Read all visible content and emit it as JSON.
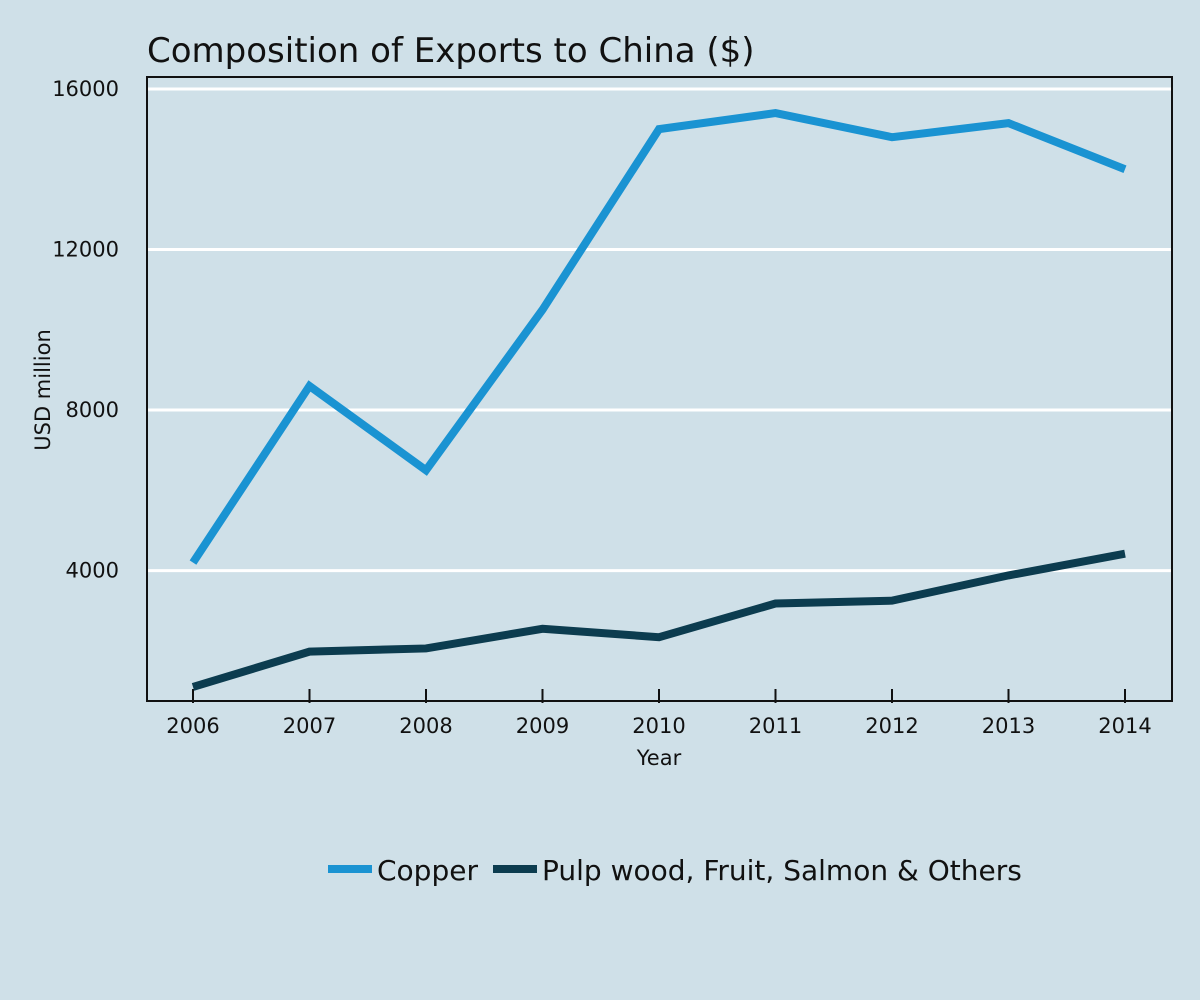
{
  "chart_data": {
    "type": "line",
    "title": "Composition of Exports to China ($)",
    "xlabel": "Year",
    "ylabel": "USD million",
    "x": [
      2006,
      2007,
      2008,
      2009,
      2010,
      2011,
      2012,
      2013,
      2014
    ],
    "x_tick_labels": [
      "2006",
      "2007",
      "2008",
      "2009",
      "2010",
      "2011",
      "2012",
      "2013",
      "2014"
    ],
    "y_ticks": [
      4000,
      8000,
      12000,
      16000
    ],
    "y_tick_labels": [
      "4000",
      "8000",
      "12000",
      "16000"
    ],
    "ylim": [
      850,
      16100
    ],
    "grid": "horizontal",
    "legend_position": "bottom-center",
    "series": [
      {
        "name": "Copper",
        "color": "#1a93d2",
        "values": [
          4200,
          8600,
          6500,
          10500,
          15000,
          15400,
          14800,
          15150,
          14000
        ]
      },
      {
        "name": "Pulp wood, Fruit, Salmon & Others",
        "color": "#0c3c4f",
        "values": [
          1100,
          1980,
          2060,
          2550,
          2340,
          3180,
          3250,
          3880,
          4420
        ]
      }
    ]
  }
}
